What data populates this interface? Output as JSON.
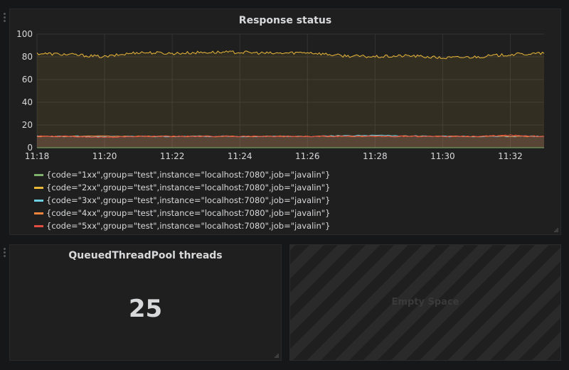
{
  "panels": {
    "response": {
      "title": "Response status"
    },
    "threads": {
      "title": "QueuedThreadPool threads",
      "value": "25"
    },
    "empty": {
      "title": "Empty Space"
    }
  },
  "legend": [
    {
      "label": "{code=\"1xx\",group=\"test\",instance=\"localhost:7080\",job=\"javalin\"}",
      "color": "#7eb26d"
    },
    {
      "label": "{code=\"2xx\",group=\"test\",instance=\"localhost:7080\",job=\"javalin\"}",
      "color": "#eab839"
    },
    {
      "label": "{code=\"3xx\",group=\"test\",instance=\"localhost:7080\",job=\"javalin\"}",
      "color": "#6ed0e0"
    },
    {
      "label": "{code=\"4xx\",group=\"test\",instance=\"localhost:7080\",job=\"javalin\"}",
      "color": "#ef843c"
    },
    {
      "label": "{code=\"5xx\",group=\"test\",instance=\"localhost:7080\",job=\"javalin\"}",
      "color": "#e24d42"
    }
  ],
  "chart_data": {
    "type": "line",
    "title": "Response status",
    "x_start": "11:18",
    "x_end": "11:33",
    "xticks": [
      "11:18",
      "11:20",
      "11:22",
      "11:24",
      "11:26",
      "11:28",
      "11:30",
      "11:32"
    ],
    "yticks": [
      0,
      20,
      40,
      60,
      80,
      100
    ],
    "ylim": [
      0,
      100
    ],
    "grid": true,
    "legend_position": "bottom",
    "series": [
      {
        "name": "{code=\"1xx\",group=\"test\",instance=\"localhost:7080\",job=\"javalin\"}",
        "color": "#7eb26d",
        "x": [
          "11:18",
          "11:20",
          "11:22",
          "11:24",
          "11:26",
          "11:28",
          "11:30",
          "11:32",
          "11:33"
        ],
        "values": [
          0,
          0,
          0,
          0,
          0,
          0,
          0,
          0,
          0
        ]
      },
      {
        "name": "{code=\"2xx\",group=\"test\",instance=\"localhost:7080\",job=\"javalin\"}",
        "color": "#eab839",
        "x": [
          "11:18",
          "11:19",
          "11:20",
          "11:21",
          "11:22",
          "11:23",
          "11:24",
          "11:25",
          "11:26",
          "11:27",
          "11:28",
          "11:29",
          "11:30",
          "11:31",
          "11:32",
          "11:33"
        ],
        "values": [
          83,
          82,
          80,
          84,
          83,
          84,
          84,
          83,
          84,
          81,
          80,
          81,
          79,
          80,
          82,
          83
        ]
      },
      {
        "name": "{code=\"3xx\",group=\"test\",instance=\"localhost:7080\",job=\"javalin\"}",
        "color": "#6ed0e0",
        "x": [
          "11:18",
          "11:20",
          "11:22",
          "11:24",
          "11:26",
          "11:28",
          "11:30",
          "11:32",
          "11:33"
        ],
        "values": [
          10,
          10,
          10,
          10,
          10,
          11,
          10,
          10,
          10
        ]
      },
      {
        "name": "{code=\"4xx\",group=\"test\",instance=\"localhost:7080\",job=\"javalin\"}",
        "color": "#ef843c",
        "x": [
          "11:18",
          "11:20",
          "11:22",
          "11:24",
          "11:26",
          "11:28",
          "11:30",
          "11:32",
          "11:33"
        ],
        "values": [
          10,
          10,
          10,
          10,
          10,
          10,
          10,
          10,
          10
        ]
      },
      {
        "name": "{code=\"5xx\",group=\"test\",instance=\"localhost:7080\",job=\"javalin\"}",
        "color": "#e24d42",
        "x": [
          "11:18",
          "11:19",
          "11:20",
          "11:21",
          "11:22",
          "11:23",
          "11:24",
          "11:25",
          "11:26",
          "11:27",
          "11:28",
          "11:29",
          "11:30",
          "11:31",
          "11:32",
          "11:33"
        ],
        "values": [
          10,
          10,
          9,
          10,
          10,
          10,
          10,
          10,
          10,
          10,
          10,
          10,
          10,
          10,
          11,
          10
        ]
      }
    ]
  }
}
